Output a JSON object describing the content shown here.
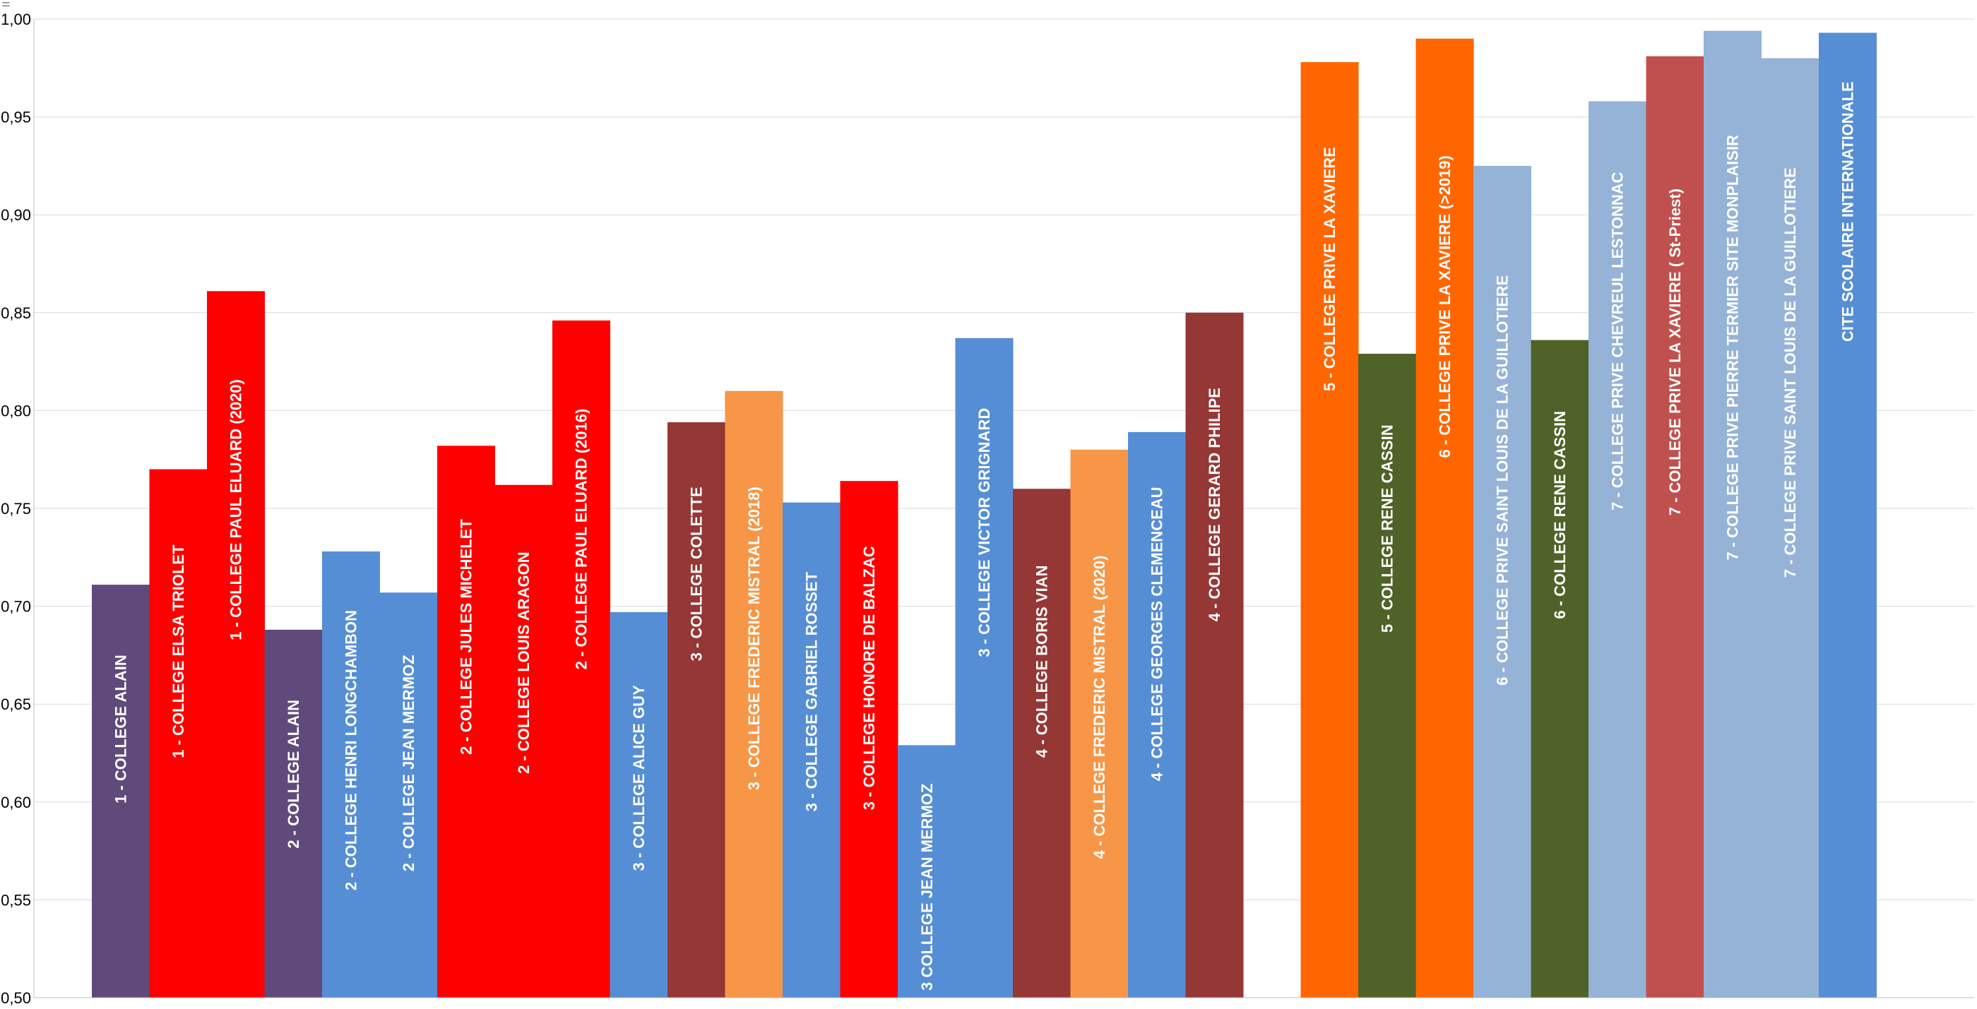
{
  "menu_icon": "hamburger-icon",
  "chart_data": {
    "type": "bar",
    "title": "",
    "xlabel": "",
    "ylabel": "",
    "ylim": [
      0.5,
      1.0
    ],
    "yticks": [
      "0,50",
      "0,55",
      "0,60",
      "0,65",
      "0,70",
      "0,75",
      "0,80",
      "0,85",
      "0,90",
      "0,95",
      "1,00"
    ],
    "grid": true,
    "legend": "none",
    "bars": [
      {
        "label": "1   - COLLEGE ALAIN",
        "value": 0.711,
        "color": "#604A7B"
      },
      {
        "label": "1   - COLLEGE ELSA TRIOLET",
        "value": 0.77,
        "color": "#FF0000"
      },
      {
        "label": "1   - COLLEGE PAUL ELUARD (2020)",
        "value": 0.861,
        "color": "#FF0000"
      },
      {
        "label": "2   - COLLEGE ALAIN",
        "value": 0.688,
        "color": "#604A7B"
      },
      {
        "label": "2   - COLLEGE HENRI LONGCHAMBON",
        "value": 0.728,
        "color": "#558ED5"
      },
      {
        "label": "2   - COLLEGE JEAN MERMOZ",
        "value": 0.707,
        "color": "#558ED5"
      },
      {
        "label": "2   - COLLEGE JULES MICHELET",
        "value": 0.782,
        "color": "#FF0000"
      },
      {
        "label": "2   - COLLEGE LOUIS ARAGON",
        "value": 0.762,
        "color": "#FF0000"
      },
      {
        "label": "2   - COLLEGE PAUL ELUARD (2016)",
        "value": 0.846,
        "color": "#FF0000"
      },
      {
        "label": "3   - COLLEGE ALICE GUY",
        "value": 0.697,
        "color": "#558ED5"
      },
      {
        "label": "3   - COLLEGE COLETTE",
        "value": 0.794,
        "color": "#953735"
      },
      {
        "label": "3   - COLLEGE FREDERIC MISTRAL (2018)",
        "value": 0.81,
        "color": "#F79646"
      },
      {
        "label": "3   - COLLEGE GABRIEL ROSSET",
        "value": 0.753,
        "color": "#558ED5"
      },
      {
        "label": "3   - COLLEGE HONORE DE BALZAC",
        "value": 0.764,
        "color": "#FF0000"
      },
      {
        "label": "3   COLLEGE JEAN MERMOZ",
        "value": 0.629,
        "color": "#558ED5"
      },
      {
        "label": "3   - COLLEGE VICTOR GRIGNARD",
        "value": 0.837,
        "color": "#558ED5"
      },
      {
        "label": "4   - COLLEGE BORIS VIAN",
        "value": 0.76,
        "color": "#953735"
      },
      {
        "label": "4   - COLLEGE FREDERIC MISTRAL  (2020)",
        "value": 0.78,
        "color": "#F79646"
      },
      {
        "label": "4   - COLLEGE GEORGES CLEMENCEAU",
        "value": 0.789,
        "color": "#558ED5"
      },
      {
        "label": "4   - COLLEGE GERARD PHILIPE",
        "value": 0.85,
        "color": "#953735"
      },
      {
        "label": "",
        "value": null,
        "color": "#ffffff"
      },
      {
        "label": "5   - COLLEGE PRIVE LA XAVIERE",
        "value": 0.978,
        "color": "#FF6600"
      },
      {
        "label": "5   - COLLEGE RENE CASSIN",
        "value": 0.829,
        "color": "#4F6228"
      },
      {
        "label": "6   - COLLEGE PRIVE LA XAVIERE  (>2019)",
        "value": 0.99,
        "color": "#FF6600"
      },
      {
        "label": "6   - COLLEGE PRIVE SAINT LOUIS DE LA GUILLOTIERE",
        "value": 0.925,
        "color": "#95B3D7"
      },
      {
        "label": "6   - COLLEGE RENE CASSIN",
        "value": 0.836,
        "color": "#4F6228"
      },
      {
        "label": "7   - COLLEGE PRIVE CHEVREUL LESTONNAC",
        "value": 0.958,
        "color": "#95B3D7"
      },
      {
        "label": "7   - COLLEGE PRIVE LA XAVIERE ( St-Priest)",
        "value": 0.981,
        "color": "#C0504D"
      },
      {
        "label": "7   - COLLEGE PRIVE PIERRE TERMIER SITE MONPLAISIR",
        "value": 0.994,
        "color": "#95B3D7"
      },
      {
        "label": "7   - COLLEGE PRIVE SAINT LOUIS DE LA GUILLOTIERE",
        "value": 0.98,
        "color": "#95B3D7"
      },
      {
        "label": "CITE SCOLAIRE INTERNATIONALE",
        "value": 0.993,
        "color": "#558ED5"
      }
    ]
  }
}
